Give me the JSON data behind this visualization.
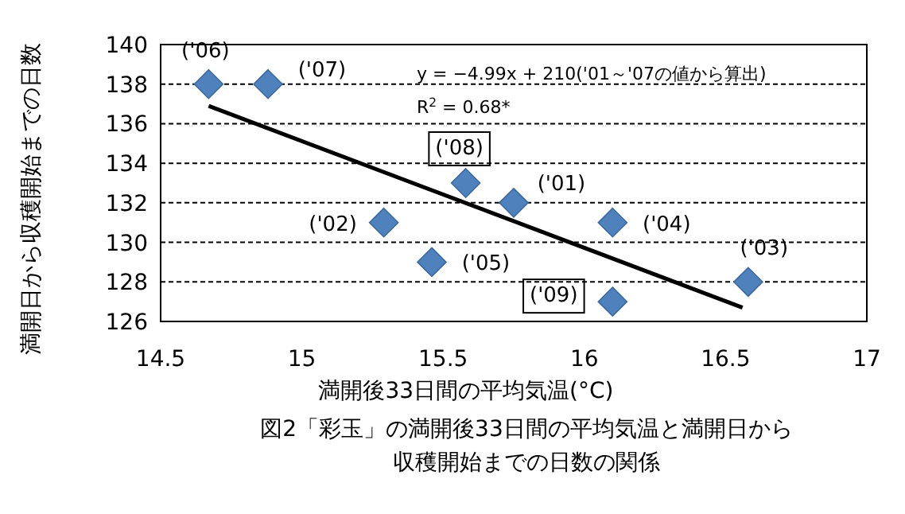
{
  "chart_data": {
    "type": "scatter",
    "xlabel": "満開後33日間の平均気温(°C)",
    "ylabel": "満開日から収穫開始までの日数",
    "xlim": [
      14.5,
      17
    ],
    "xticks": [
      14.5,
      15,
      15.5,
      16,
      16.5,
      17
    ],
    "ylim": [
      126,
      140
    ],
    "yticks": [
      126,
      128,
      130,
      132,
      134,
      136,
      138,
      140
    ],
    "grid": "y",
    "series": [
      {
        "color": "#4f81bd",
        "marker": "diamond",
        "x": [
          15.75,
          15.29,
          16.58,
          16.1,
          15.46,
          14.67,
          14.88,
          15.58,
          16.1
        ],
        "values": [
          132,
          131,
          128,
          131,
          129,
          138,
          138,
          133,
          127
        ]
      },
      {
        "type": "line",
        "color": "#000000",
        "x": [
          14.67,
          16.56
        ],
        "values": [
          136.9,
          126.7
        ]
      }
    ],
    "annotations": [
      {
        "text": "('01)",
        "x": 15.75,
        "y": 132
      },
      {
        "text": "('02)",
        "x": 15.29,
        "y": 131
      },
      {
        "text": "('03)",
        "x": 16.58,
        "y": 128
      },
      {
        "text": "('04)",
        "x": 16.1,
        "y": 131
      },
      {
        "text": "('05)",
        "x": 15.46,
        "y": 129
      },
      {
        "text": "('06)",
        "x": 14.67,
        "y": 138
      },
      {
        "text": "('07)",
        "x": 14.88,
        "y": 138
      },
      {
        "text": "('08)",
        "x": 15.58,
        "y": 133
      },
      {
        "text": "('09)",
        "x": 16.1,
        "y": 127
      },
      "y = −4.99x + 210('01～'07の値から算出)",
      "R$^{2}$ = 0.68*",
      "図2「彩玉」の満開後33日間の平均気温と満開日から",
      "収穫開始までの日数の関係"
    ]
  }
}
